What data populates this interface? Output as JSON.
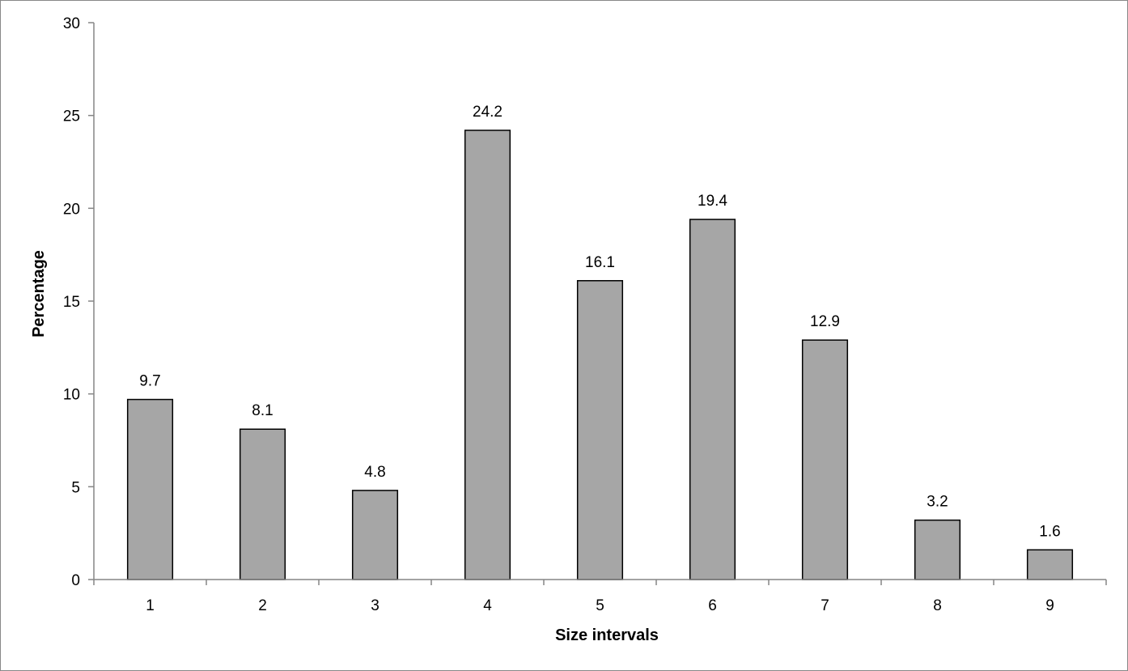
{
  "chart_data": {
    "type": "bar",
    "title": "",
    "xlabel": "Size intervals",
    "ylabel": "Percentage",
    "categories": [
      "1",
      "2",
      "3",
      "4",
      "5",
      "6",
      "7",
      "8",
      "9"
    ],
    "values": [
      9.7,
      8.1,
      4.8,
      24.2,
      16.1,
      19.4,
      12.9,
      3.2,
      1.6
    ],
    "data_labels": [
      "9.7",
      "8.1",
      "4.8",
      "24.2",
      "16.1",
      "19.4",
      "12.9",
      "3.2",
      "1.6"
    ],
    "ylim": [
      0,
      30
    ],
    "yticks": [
      "0",
      "5",
      "10",
      "15",
      "20",
      "25",
      "30"
    ],
    "grid": false,
    "legend": "none",
    "colors": {
      "bar_fill": "#a6a6a6",
      "bar_stroke": "#000000",
      "axis": "#868686"
    }
  }
}
